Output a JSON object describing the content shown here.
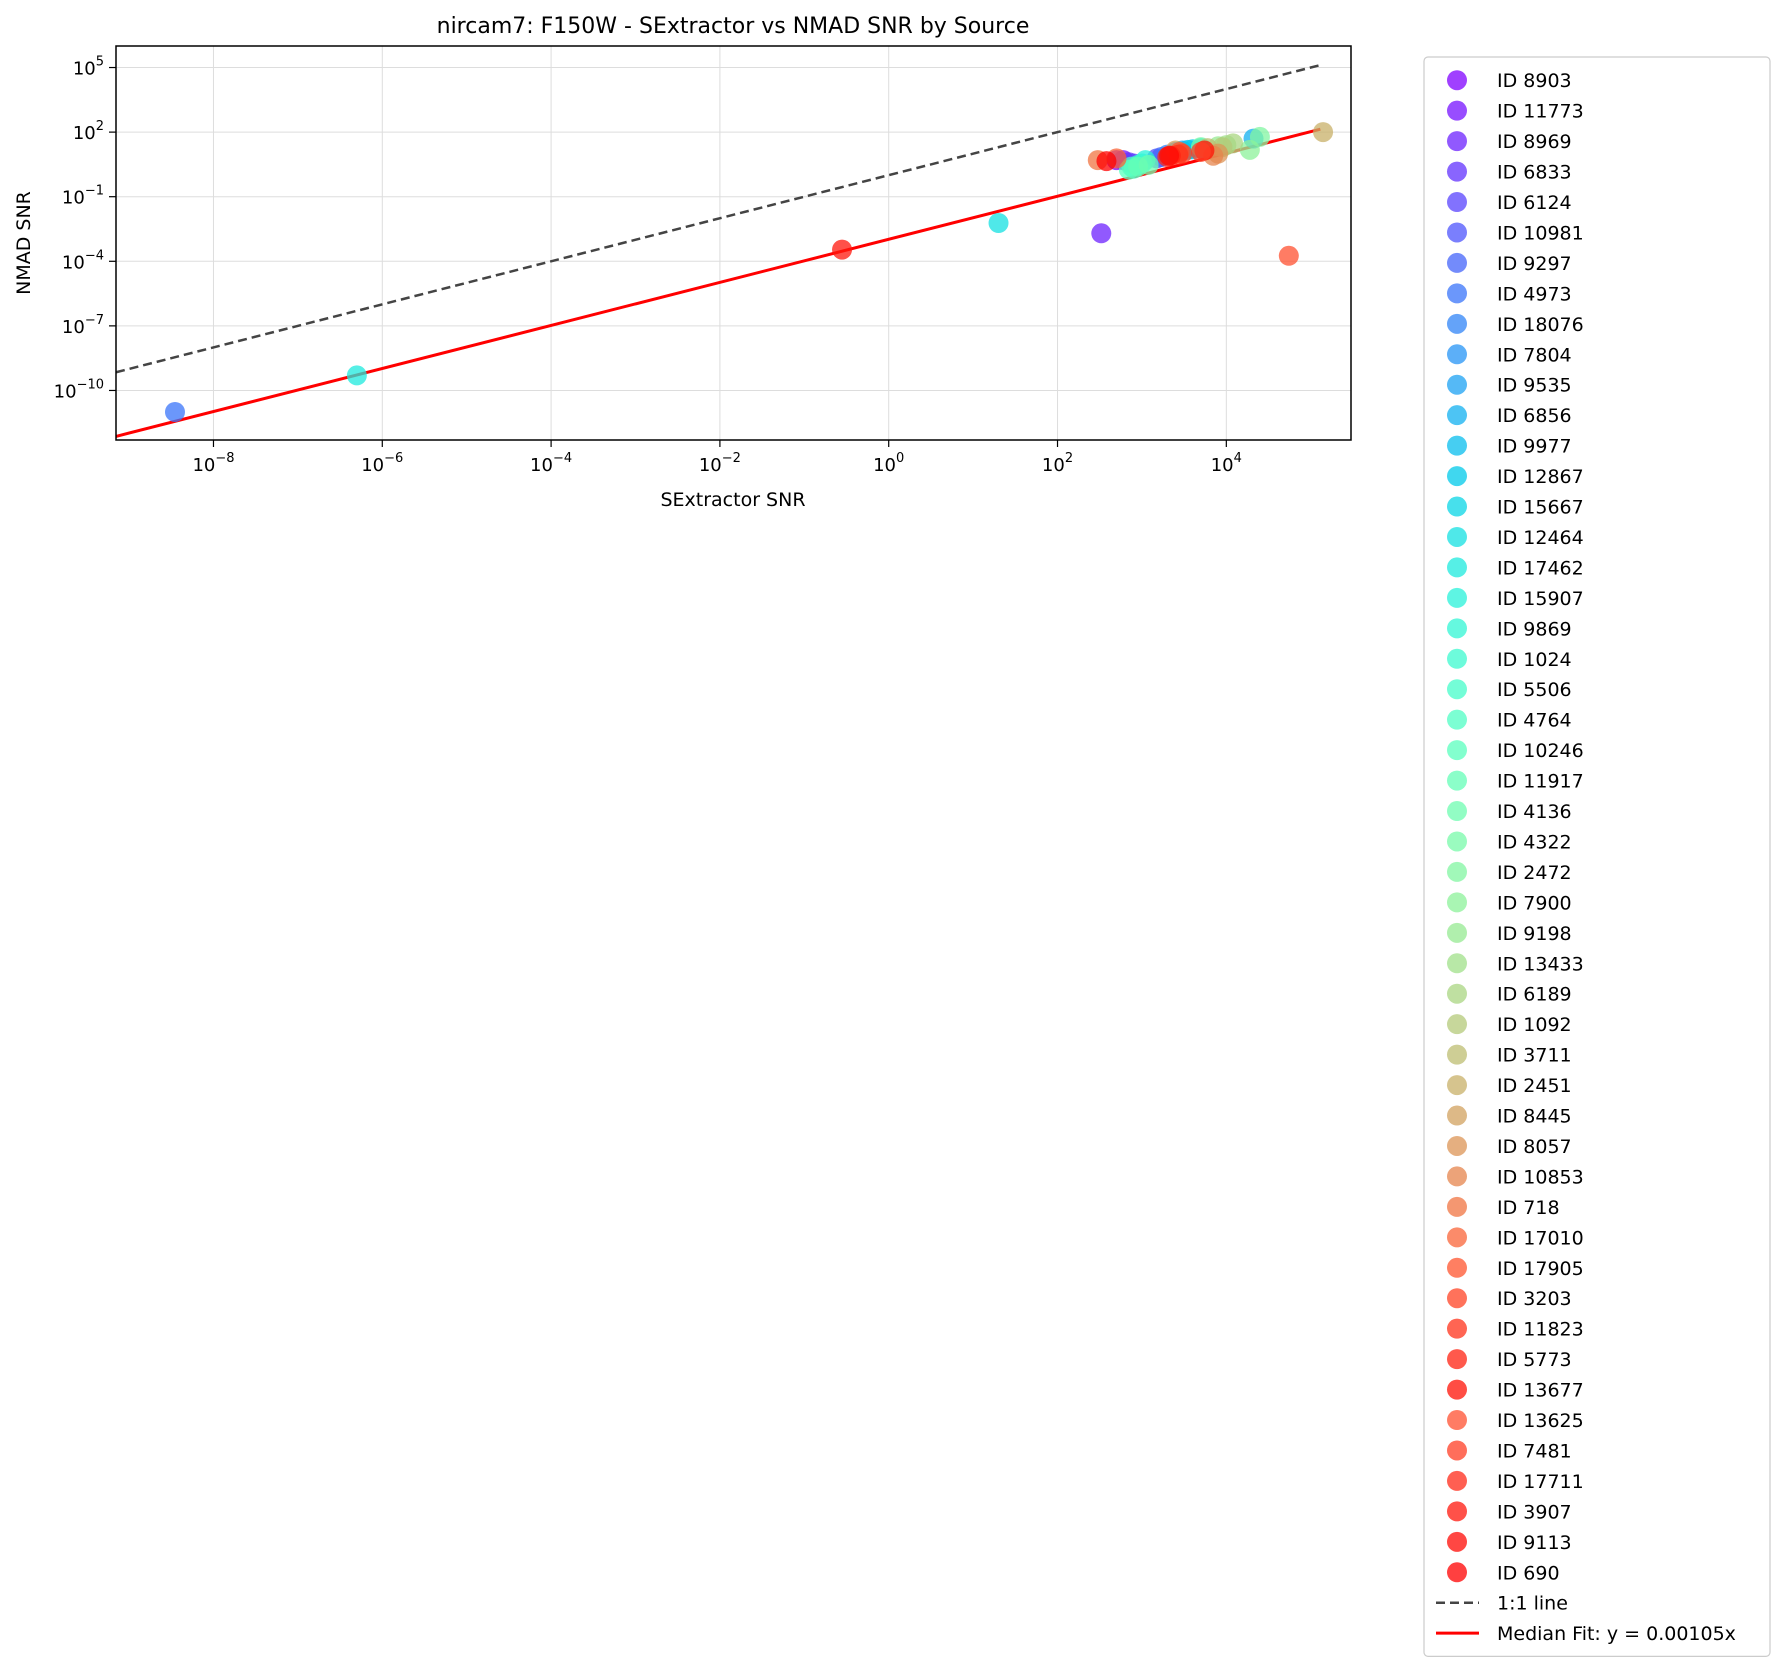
{
  "chart_data": {
    "type": "scatter",
    "title": "nircam7: F150W - SExtractor vs NMAD SNR by Source",
    "xlabel": "SExtractor SNR",
    "ylabel": "NMAD SNR",
    "xscale": "log",
    "yscale": "log",
    "xlim": [
      7e-10,
      300000.0
    ],
    "ylim": [
      5e-13,
      1000000.0
    ],
    "grid": true,
    "legend_position": "outside right",
    "x_ticks": [
      {
        "value": 1e-08,
        "base": "10",
        "exp": "−8"
      },
      {
        "value": 1e-06,
        "base": "10",
        "exp": "−6"
      },
      {
        "value": 0.0001,
        "base": "10",
        "exp": "−4"
      },
      {
        "value": 0.01,
        "base": "10",
        "exp": "−2"
      },
      {
        "value": 1,
        "base": "10",
        "exp": "0"
      },
      {
        "value": 100,
        "base": "10",
        "exp": "2"
      },
      {
        "value": 10000,
        "base": "10",
        "exp": "4"
      }
    ],
    "y_ticks": [
      {
        "value": 100000.0,
        "base": "10",
        "exp": "5"
      },
      {
        "value": 100.0,
        "base": "10",
        "exp": "2"
      },
      {
        "value": 0.1,
        "base": "10",
        "exp": "−1"
      },
      {
        "value": 0.0001,
        "base": "10",
        "exp": "−4"
      },
      {
        "value": 1e-07,
        "base": "10",
        "exp": "−7"
      },
      {
        "value": 1e-10,
        "base": "10",
        "exp": "−10"
      }
    ],
    "series": [
      {
        "name": "ID 8903",
        "color": "#8000ff",
        "points": [
          [
            500,
            5
          ]
        ]
      },
      {
        "name": "ID 11773",
        "color": "#7611ff",
        "points": [
          [
            600,
            5
          ]
        ]
      },
      {
        "name": "ID 8969",
        "color": "#6c22fe",
        "points": [
          [
            330,
            0.002
          ]
        ]
      },
      {
        "name": "ID 6833",
        "color": "#6232fe",
        "points": [
          [
            700,
            4
          ]
        ]
      },
      {
        "name": "ID 6124",
        "color": "#5843fd",
        "points": [
          [
            800,
            3.5
          ]
        ]
      },
      {
        "name": "ID 10981",
        "color": "#4e54fc",
        "points": [
          [
            1500,
            6
          ]
        ]
      },
      {
        "name": "ID 9297",
        "color": "#4464fa",
        "points": [
          [
            1700,
            7
          ]
        ]
      },
      {
        "name": "ID 4973",
        "color": "#3a74f9",
        "points": [
          [
            3.5e-09,
            1e-11
          ]
        ]
      },
      {
        "name": "ID 18076",
        "color": "#3084f7",
        "points": [
          [
            2000,
            9
          ]
        ]
      },
      {
        "name": "ID 7804",
        "color": "#2694f5",
        "points": [
          [
            2500,
            12
          ]
        ]
      },
      {
        "name": "ID 9535",
        "color": "#1ca2f3",
        "points": [
          [
            3000,
            14
          ]
        ]
      },
      {
        "name": "ID 6856",
        "color": "#12b0f0",
        "points": [
          [
            21000,
            50
          ]
        ]
      },
      {
        "name": "ID 9977",
        "color": "#08beed",
        "points": [
          [
            3500,
            15
          ]
        ]
      },
      {
        "name": "ID 12867",
        "color": "#00caea",
        "points": [
          [
            4000,
            16
          ]
        ]
      },
      {
        "name": "ID 15667",
        "color": "#0ad6e6",
        "points": [
          [
            5000,
            18
          ]
        ]
      },
      {
        "name": "ID 12464",
        "color": "#14e0e2",
        "points": [
          [
            20,
            0.006
          ]
        ]
      },
      {
        "name": "ID 17462",
        "color": "#1ee9de",
        "points": [
          [
            5e-07,
            5e-10
          ]
        ]
      },
      {
        "name": "ID 15907",
        "color": "#28f2d9",
        "points": [
          [
            1100,
            5
          ]
        ]
      },
      {
        "name": "ID 9869",
        "color": "#32f6d4",
        "points": [
          [
            1000,
            3.5
          ]
        ]
      },
      {
        "name": "ID 1024",
        "color": "#3cfacf",
        "points": [
          [
            900,
            3
          ]
        ]
      },
      {
        "name": "ID 5506",
        "color": "#46fcc9",
        "points": [
          [
            800,
            2
          ]
        ]
      },
      {
        "name": "ID 4764",
        "color": "#50fec4",
        "points": [
          [
            750,
            2.5
          ]
        ]
      },
      {
        "name": "ID 10246",
        "color": "#5affbd",
        "points": [
          [
            700,
            1.8
          ]
        ]
      },
      {
        "name": "ID 11917",
        "color": "#64feb7",
        "points": [
          [
            900,
            2.5
          ]
        ]
      },
      {
        "name": "ID 4136",
        "color": "#6efcb0",
        "points": [
          [
            1200,
            3
          ]
        ]
      },
      {
        "name": "ID 4322",
        "color": "#78faa9",
        "points": [
          [
            5000,
            20
          ]
        ]
      },
      {
        "name": "ID 2472",
        "color": "#82f6a2",
        "points": [
          [
            25000,
            60
          ]
        ]
      },
      {
        "name": "ID 7900",
        "color": "#8cf29a",
        "points": [
          [
            19000,
            15
          ]
        ]
      },
      {
        "name": "ID 9198",
        "color": "#96e992",
        "points": [
          [
            8000,
            22
          ]
        ]
      },
      {
        "name": "ID 13433",
        "color": "#a0e08a",
        "points": [
          [
            10000,
            25
          ]
        ]
      },
      {
        "name": "ID 6189",
        "color": "#aad682",
        "points": [
          [
            12000,
            30
          ]
        ]
      },
      {
        "name": "ID 1092",
        "color": "#b4ca79",
        "points": [
          [
            9000,
            20
          ]
        ]
      },
      {
        "name": "ID 3711",
        "color": "#bebe71",
        "points": [
          [
            6000,
            18
          ]
        ]
      },
      {
        "name": "ID 2451",
        "color": "#c8b068",
        "points": [
          [
            140000,
            100
          ]
        ]
      },
      {
        "name": "ID 8445",
        "color": "#d2a25f",
        "points": [
          [
            2500,
            14
          ]
        ]
      },
      {
        "name": "ID 8057",
        "color": "#dc9456",
        "points": [
          [
            8000,
            10
          ]
        ]
      },
      {
        "name": "ID 10853",
        "color": "#e6844c",
        "points": [
          [
            7000,
            8
          ]
        ]
      },
      {
        "name": "ID 718",
        "color": "#f07442",
        "points": [
          [
            300,
            5
          ]
        ]
      },
      {
        "name": "ID 17010",
        "color": "#fa6438",
        "points": [
          [
            500,
            6
          ]
        ]
      },
      {
        "name": "ID 17905",
        "color": "#ff542e",
        "points": [
          [
            2800,
            12
          ]
        ]
      },
      {
        "name": "ID 3203",
        "color": "#ff4324",
        "points": [
          [
            3000,
            10
          ]
        ]
      },
      {
        "name": "ID 11823",
        "color": "#ff321a",
        "points": [
          [
            2700,
            9
          ]
        ]
      },
      {
        "name": "ID 5773",
        "color": "#ff2210",
        "points": [
          [
            2200,
            8
          ]
        ]
      },
      {
        "name": "ID 13677",
        "color": "#ff1106",
        "points": [
          [
            5500,
            14
          ]
        ]
      },
      {
        "name": "ID 13625",
        "color": "#ff5030",
        "points": [
          [
            55000,
            0.00018
          ]
        ]
      },
      {
        "name": "ID 7481",
        "color": "#ff3d24",
        "points": [
          [
            5000,
            12
          ]
        ]
      },
      {
        "name": "ID 17711",
        "color": "#ff2a18",
        "points": [
          [
            2000,
            7
          ]
        ]
      },
      {
        "name": "ID 3907",
        "color": "#ff170c",
        "points": [
          [
            0.28,
            0.00035
          ]
        ]
      },
      {
        "name": "ID 9113",
        "color": "#ff0a04",
        "points": [
          [
            2100,
            8
          ]
        ]
      },
      {
        "name": "ID 690",
        "color": "#ff0000",
        "points": [
          [
            380,
            4.5
          ]
        ]
      }
    ],
    "reference_lines": [
      {
        "name": "1:1 line",
        "style": "dashed",
        "color": "#444444",
        "x": [
          7e-10,
          130000
        ],
        "y": [
          7e-10,
          130000
        ]
      },
      {
        "name": "Median Fit: y = 0.00105x",
        "style": "solid",
        "color": "#ff0000",
        "x": [
          7e-10,
          130000
        ],
        "slope": 0.00105
      }
    ]
  }
}
